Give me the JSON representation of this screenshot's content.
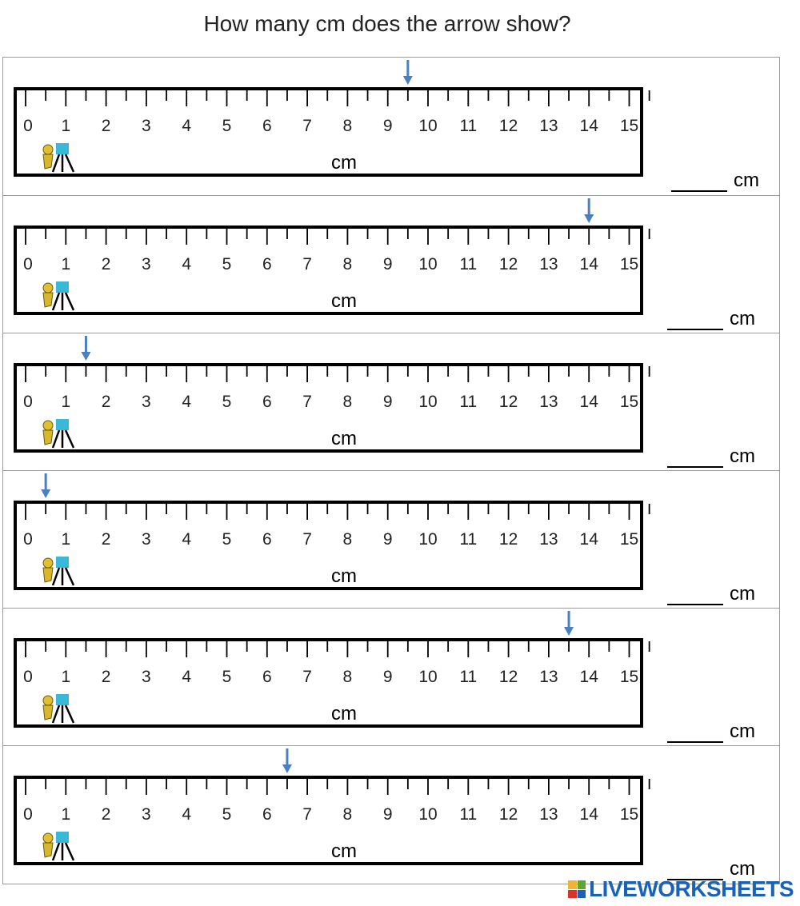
{
  "title": "How many cm does the arrow show?",
  "ruler": {
    "numbers": [
      "0",
      "1",
      "2",
      "3",
      "4",
      "5",
      "6",
      "7",
      "8",
      "9",
      "10",
      "11",
      "12",
      "13",
      "14",
      "15"
    ],
    "unit_label": "cm"
  },
  "answer_unit": "cm",
  "questions": [
    {
      "arrow_value": 9.5
    },
    {
      "arrow_value": 14
    },
    {
      "arrow_value": 1.5
    },
    {
      "arrow_value": 0.5
    },
    {
      "arrow_value": 13.5
    },
    {
      "arrow_value": 6.5
    }
  ],
  "colors": {
    "arrow": "#4a7fc1",
    "ruler_border": "#000000"
  },
  "branding": {
    "text": "LIVEWORKSHEETS"
  }
}
